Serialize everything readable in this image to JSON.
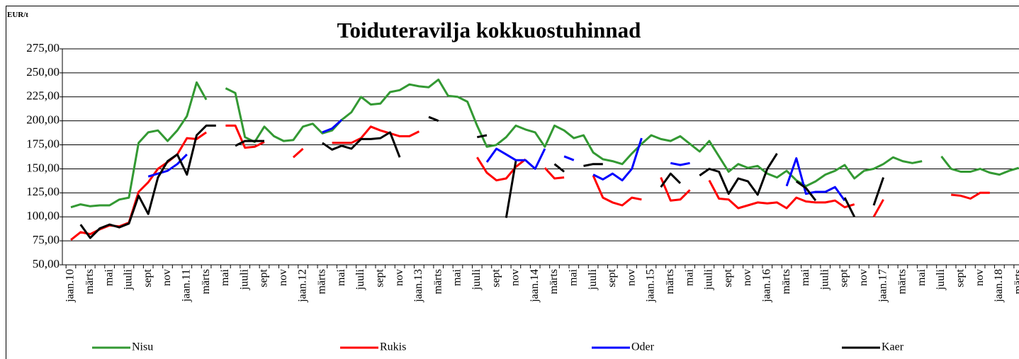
{
  "chart_data": {
    "type": "line",
    "title": "Toiduteravilja kokkuostuhinnad",
    "y_label": "EUR/t",
    "categories": [
      "jaan.10",
      null,
      "märts",
      null,
      "mai",
      null,
      "juuli",
      null,
      "sept",
      null,
      "nov",
      null,
      "jaan.11",
      null,
      "märts",
      null,
      "mai",
      null,
      "juuli",
      null,
      "sept",
      null,
      "nov",
      null,
      "jaan.12",
      null,
      "märts",
      null,
      "mai",
      null,
      "juuli",
      null,
      "sept",
      null,
      "nov",
      null,
      "jaan.13",
      null,
      "märts",
      null,
      "mai",
      null,
      "juuli",
      null,
      "sept",
      null,
      "nov",
      null,
      "jaan.14",
      null,
      "märts",
      null,
      "mai",
      null,
      "juuli",
      null,
      "sept",
      null,
      "nov",
      null,
      "jaan.15",
      null,
      "märts",
      null,
      "mai",
      null,
      "juuli",
      null,
      "sept",
      null,
      "nov",
      null,
      "jaan.16",
      null,
      "märts",
      null,
      "mai",
      null,
      "juuli",
      null,
      "sept",
      null,
      "nov",
      null,
      "jaan.17",
      null,
      "märts",
      null,
      "mai",
      null,
      "juuli",
      null,
      "sept",
      null,
      "nov",
      null,
      "jaan.18",
      null,
      "märts"
    ],
    "series": [
      {
        "name": "Nisu",
        "color": "#339933",
        "values": [
          110,
          113,
          111,
          112,
          112,
          118,
          120,
          177,
          188,
          190,
          179,
          190,
          205,
          240,
          222,
          null,
          234,
          229,
          183,
          178,
          194,
          184,
          179,
          180,
          194,
          197,
          187,
          190,
          201,
          209,
          225,
          217,
          218,
          230,
          232,
          238,
          236,
          235,
          243,
          226,
          225,
          220,
          195,
          173,
          175,
          183,
          195,
          191,
          188,
          173,
          195,
          190,
          182,
          185,
          167,
          160,
          158,
          155,
          166,
          176,
          185,
          181,
          179,
          184,
          176,
          168,
          179,
          163,
          147,
          155,
          151,
          153,
          145,
          141,
          148,
          138,
          132,
          137,
          144,
          148,
          154,
          140,
          148,
          150,
          155,
          162,
          158,
          156,
          158,
          null,
          163,
          150,
          147,
          147,
          150,
          146,
          144,
          148,
          151
        ]
      },
      {
        "name": "Rukis",
        "color": "#ff0000",
        "values": [
          76,
          84,
          82,
          87,
          91,
          90,
          94,
          126,
          136,
          150,
          157,
          165,
          182,
          181,
          188,
          null,
          195,
          195,
          172,
          173,
          178,
          null,
          null,
          162,
          171,
          null,
          null,
          177,
          177,
          177,
          182,
          194,
          190,
          187,
          184,
          184,
          189,
          null,
          null,
          null,
          null,
          null,
          162,
          146,
          138,
          140,
          152,
          160,
          null,
          151,
          140,
          141,
          null,
          null,
          143,
          120,
          115,
          112,
          120,
          118,
          null,
          141,
          117,
          118,
          128,
          null,
          138,
          119,
          118,
          109,
          112,
          115,
          114,
          115,
          109,
          120,
          116,
          115,
          115,
          117,
          110,
          113,
          null,
          100,
          118,
          null,
          null,
          null,
          null,
          null,
          null,
          123,
          122,
          119,
          125,
          125,
          null,
          null,
          null
        ]
      },
      {
        "name": "Oder",
        "color": "#0000ff",
        "values": [
          null,
          null,
          null,
          null,
          null,
          null,
          null,
          null,
          142,
          145,
          148,
          155,
          165,
          null,
          null,
          null,
          null,
          null,
          null,
          null,
          null,
          null,
          null,
          null,
          null,
          null,
          188,
          192,
          201,
          null,
          null,
          null,
          null,
          null,
          null,
          null,
          null,
          null,
          null,
          null,
          null,
          null,
          null,
          157,
          171,
          165,
          159,
          159,
          150,
          171,
          null,
          163,
          159,
          null,
          144,
          139,
          145,
          138,
          150,
          182,
          null,
          null,
          156,
          154,
          156,
          null,
          null,
          null,
          null,
          null,
          null,
          null,
          null,
          null,
          132,
          161,
          124,
          126,
          126,
          131,
          117,
          null,
          null,
          null,
          null,
          null,
          null,
          null,
          null,
          null,
          null,
          null,
          null,
          null,
          null,
          null,
          null,
          null,
          null
        ]
      },
      {
        "name": "Kaer",
        "color": "#000000",
        "values": [
          null,
          92,
          78,
          88,
          92,
          89,
          93,
          122,
          103,
          141,
          158,
          165,
          144,
          185,
          195,
          195,
          null,
          174,
          179,
          179,
          179,
          null,
          null,
          null,
          null,
          null,
          177,
          170,
          174,
          171,
          181,
          181,
          182,
          188,
          162,
          null,
          null,
          204,
          200,
          null,
          null,
          null,
          183,
          185,
          null,
          99,
          158,
          null,
          null,
          null,
          155,
          147,
          null,
          153,
          155,
          155,
          null,
          null,
          null,
          null,
          null,
          131,
          145,
          135,
          null,
          143,
          150,
          147,
          124,
          140,
          137,
          123,
          150,
          166,
          null,
          137,
          130,
          117,
          null,
          null,
          120,
          100,
          null,
          112,
          141,
          null,
          null,
          null,
          null,
          null,
          null,
          null,
          null,
          null,
          null,
          null,
          null,
          null,
          null
        ]
      }
    ],
    "ylim": [
      50,
      275
    ],
    "yticks": [
      {
        "value": 50,
        "label": "50,00"
      },
      {
        "value": 75,
        "label": "75,00"
      },
      {
        "value": 100,
        "label": "100,00"
      },
      {
        "value": 125,
        "label": "125,00"
      },
      {
        "value": 150,
        "label": "150,00"
      },
      {
        "value": 175,
        "label": "175,00"
      },
      {
        "value": 200,
        "label": "200,00"
      },
      {
        "value": 225,
        "label": "225,00"
      },
      {
        "value": 250,
        "label": "250,00"
      },
      {
        "value": 275,
        "label": "275,00"
      }
    ],
    "grid": true,
    "legend": "bottom"
  }
}
